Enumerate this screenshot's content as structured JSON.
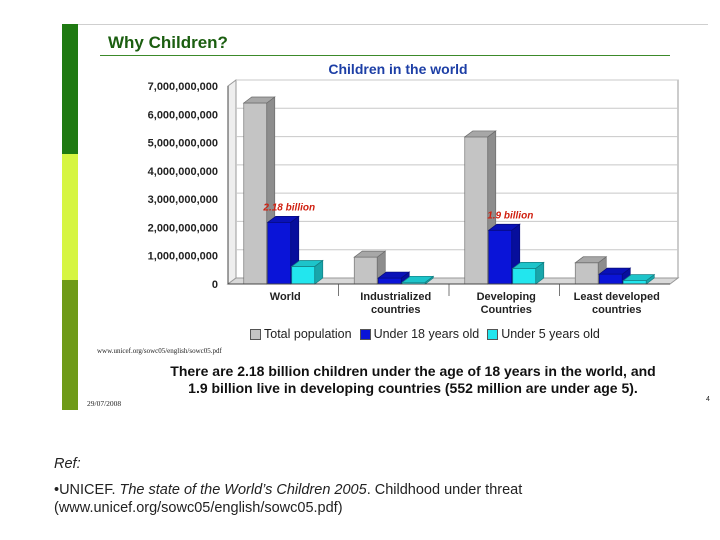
{
  "slide": {
    "title": "Why Children?",
    "url_note": "www.unicef.org/sowc05/english/sowc05.pdf",
    "caption_line1": "There are 2.18 billion children under the age of 18 years in the world, and",
    "caption_line2": "1.9 billion live in developing countries (552 million are under age 5).",
    "date": "29/07/2008",
    "page_number": "4"
  },
  "colors": {
    "total": "#c4c4c4",
    "under18": "#0a14d8",
    "under5": "#22e6ee",
    "annotation": "#d02010",
    "chart_title": "#1d3fa6",
    "slide_title": "#1b5e10"
  },
  "chart_data": {
    "type": "bar",
    "title": "Children in the world",
    "xlabel": "",
    "ylabel": "",
    "ylim": [
      0,
      7000000000
    ],
    "yticks": [
      "0",
      "1,000,000,000",
      "2,000,000,000",
      "3,000,000,000",
      "4,000,000,000",
      "5,000,000,000",
      "6,000,000,000",
      "7,000,000,000"
    ],
    "categories": [
      [
        "World"
      ],
      [
        "Industrialized",
        "countries"
      ],
      [
        "Developing",
        "Countries"
      ],
      [
        "Least developed",
        "countries"
      ]
    ],
    "series": [
      {
        "name": "Total population",
        "values": [
          6400000000,
          950000000,
          5200000000,
          750000000
        ]
      },
      {
        "name": "Under 18 years old",
        "values": [
          2180000000,
          210000000,
          1900000000,
          350000000
        ]
      },
      {
        "name": "Under 5 years old",
        "values": [
          620000000,
          60000000,
          552000000,
          120000000
        ]
      }
    ],
    "annotations": [
      {
        "category": 0,
        "text": "2.18 billion"
      },
      {
        "category": 2,
        "text": "1.9 billion"
      }
    ],
    "grid": true,
    "legend": "bottom"
  },
  "reference": {
    "label": "Ref:",
    "author": "•UNICEF. ",
    "work": "The state of the World’s Children 2005",
    "rest": ". Childhood under threat",
    "url_line": "(www.unicef.org/sowc05/english/sowc05.pdf)"
  }
}
